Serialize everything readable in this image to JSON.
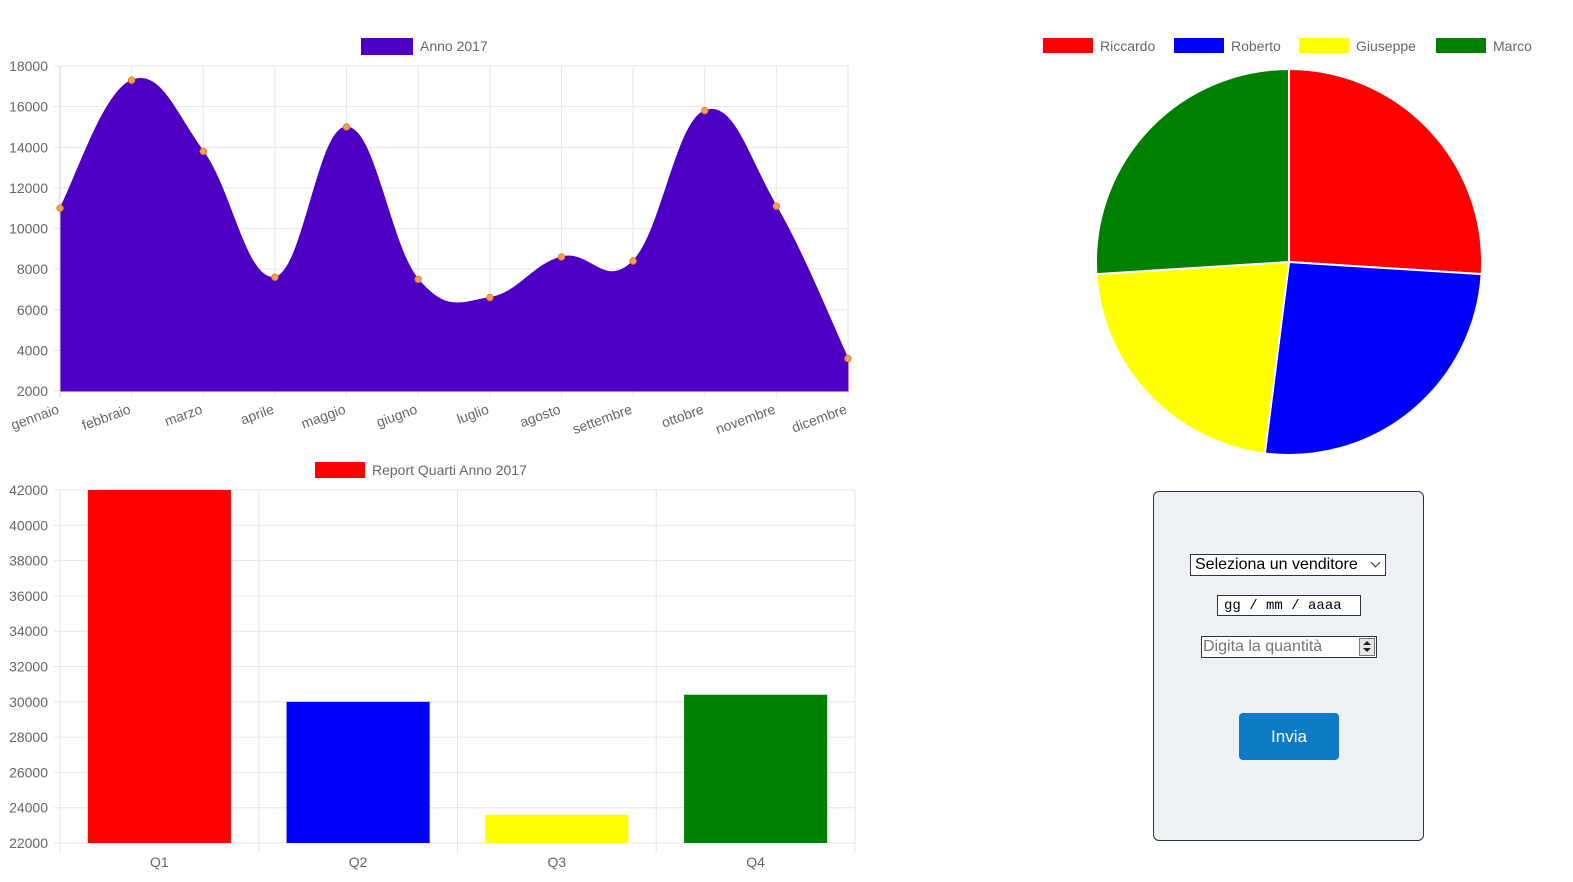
{
  "chart_data": [
    {
      "type": "area",
      "legend": [
        "Anno 2017"
      ],
      "categories": [
        "gennaio",
        "febbraio",
        "marzo",
        "aprile",
        "maggio",
        "giugno",
        "luglio",
        "agosto",
        "settembre",
        "ottobre",
        "novembre",
        "dicembre"
      ],
      "series": [
        {
          "name": "Anno 2017",
          "values": [
            11000,
            17300,
            13800,
            7600,
            15000,
            7500,
            6600,
            8600,
            8400,
            15800,
            11100,
            3600
          ]
        }
      ],
      "yticks": [
        "2000",
        "4000",
        "6000",
        "8000",
        "10000",
        "12000",
        "14000",
        "16000",
        "18000"
      ],
      "ylim": [
        2000,
        18000
      ],
      "grid": true,
      "legend_position": "top",
      "colors": {
        "fill": "#4d00c4",
        "point": "#f4a058",
        "point_border": "#e67e22"
      }
    },
    {
      "type": "pie",
      "labels": [
        "Riccardo",
        "Roberto",
        "Giuseppe",
        "Marco"
      ],
      "values": [
        26,
        26,
        22,
        26
      ],
      "legend_position": "top",
      "colors": [
        "#ff0000",
        "#0000ff",
        "#ffff00",
        "#008000"
      ]
    },
    {
      "type": "bar",
      "legend": [
        "Report Quarti Anno 2017"
      ],
      "categories": [
        "Q1",
        "Q2",
        "Q3",
        "Q4"
      ],
      "series": [
        {
          "name": "Report Quarti Anno 2017",
          "values": [
            42000,
            30000,
            23600,
            30400
          ]
        }
      ],
      "yticks": [
        "22000",
        "24000",
        "26000",
        "28000",
        "30000",
        "32000",
        "34000",
        "36000",
        "38000",
        "40000",
        "42000"
      ],
      "ylim": [
        22000,
        42000
      ],
      "grid": true,
      "legend_position": "top",
      "colors": [
        "#ff0000",
        "#0000ff",
        "#ffff00",
        "#008000"
      ]
    }
  ],
  "form": {
    "select_value": "Seleziona un venditore",
    "date_placeholder": "gg / mm / aaaa",
    "quantity_placeholder": "Digita la quantità",
    "submit_label": "Invia"
  }
}
